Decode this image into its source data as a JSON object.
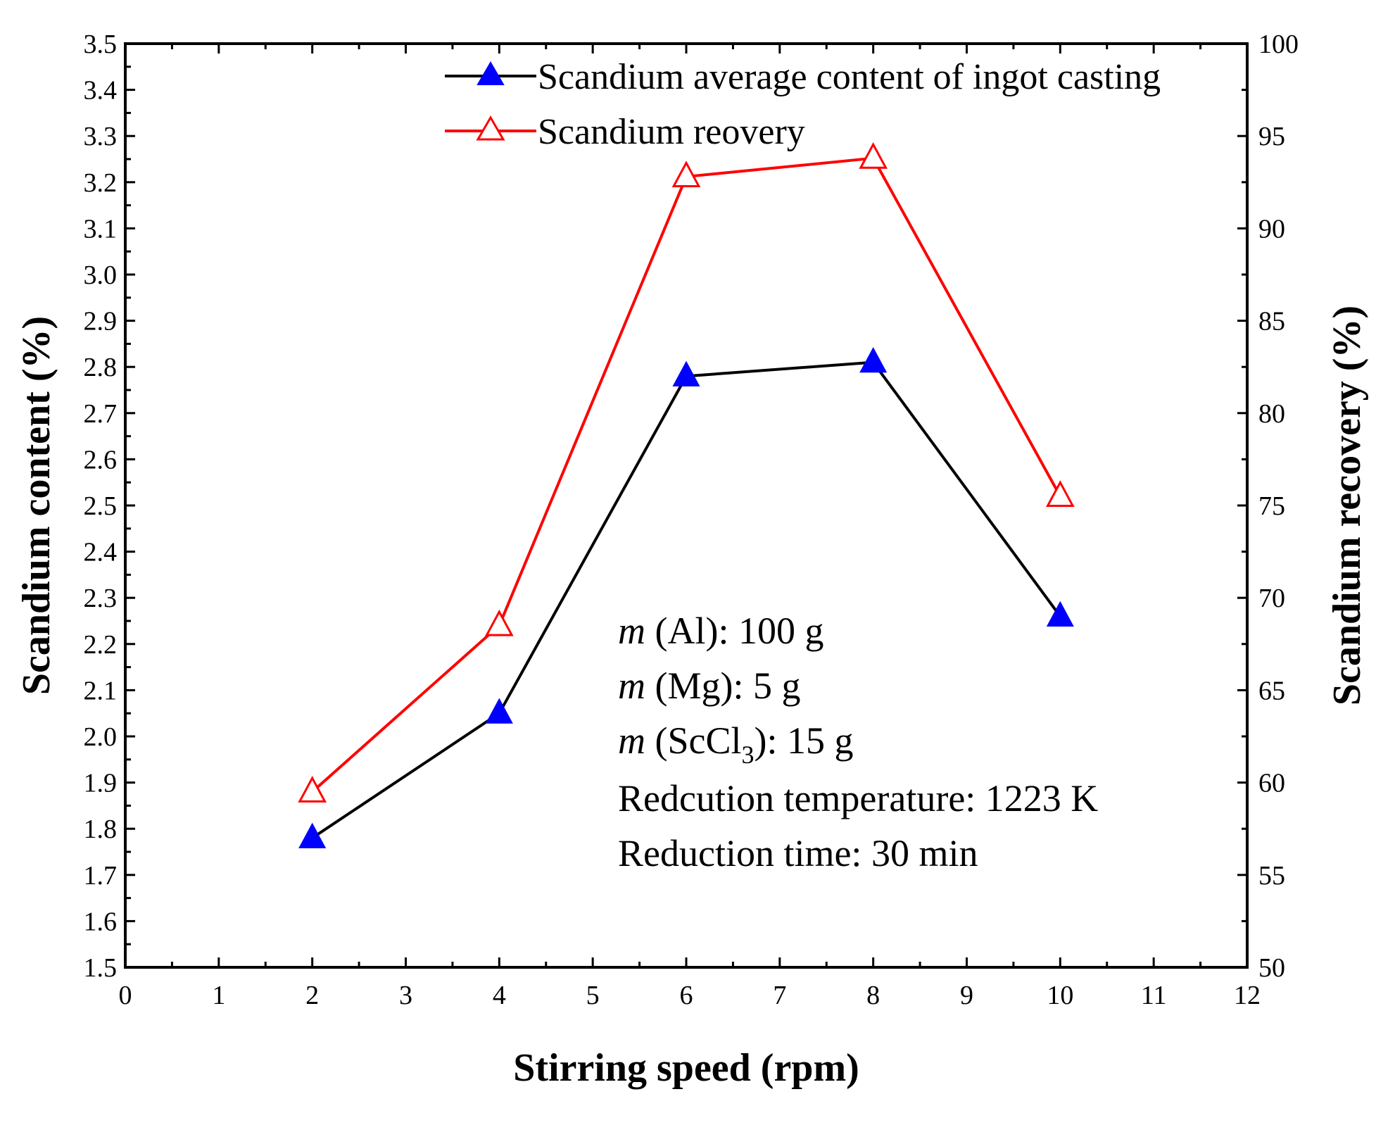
{
  "chart_data": {
    "type": "line",
    "title": "",
    "xlabel": "Stirring speed (rpm)",
    "ylabel_left": "Scandium content (%)",
    "ylabel_right": "Scandium recovery (%)",
    "xlim": [
      0,
      12
    ],
    "ylim_left": [
      1.5,
      3.5
    ],
    "ylim_right": [
      50,
      100
    ],
    "x_ticks": [
      "0",
      "1",
      "2",
      "3",
      "4",
      "5",
      "6",
      "7",
      "8",
      "9",
      "10",
      "11",
      "12"
    ],
    "y_left_ticks": [
      "1.5",
      "1.6",
      "1.7",
      "1.8",
      "1.9",
      "2.0",
      "2.1",
      "2.2",
      "2.3",
      "2.4",
      "2.5",
      "2.6",
      "2.7",
      "2.8",
      "2.9",
      "3.0",
      "3.1",
      "3.2",
      "3.3",
      "3.4",
      "3.5"
    ],
    "y_right_ticks": [
      "50",
      "55",
      "60",
      "65",
      "70",
      "75",
      "80",
      "85",
      "90",
      "95",
      "100"
    ],
    "grid": false,
    "legend_position": "top-right",
    "series": [
      {
        "name": "Scandium average content of ingot casting",
        "axis": "left",
        "color": "#000000",
        "marker": "filled-triangle",
        "marker_color": "#0000ff",
        "x": [
          2,
          4,
          6,
          8,
          10
        ],
        "values": [
          1.78,
          2.05,
          2.78,
          2.81,
          2.26
        ]
      },
      {
        "name": "Scandium reovery",
        "axis": "right",
        "color": "#ff0000",
        "marker": "open-triangle",
        "marker_color": "#ff0000",
        "x": [
          2,
          4,
          6,
          8,
          10
        ],
        "values": [
          59.5,
          68.5,
          92.8,
          93.8,
          75.5
        ]
      }
    ],
    "annotations": {
      "m_al": {
        "italic": "m",
        "text": " (Al): 100 g"
      },
      "m_mg": {
        "italic": "m",
        "text": " (Mg): 5 g"
      },
      "m_sccl": {
        "italic": "m",
        "text_before": " (ScCl",
        "subscript": "3",
        "text_after": "): 15 g"
      },
      "temperature": "Redcution temperature: 1223 K",
      "time": "Reduction time: 30 min"
    }
  }
}
